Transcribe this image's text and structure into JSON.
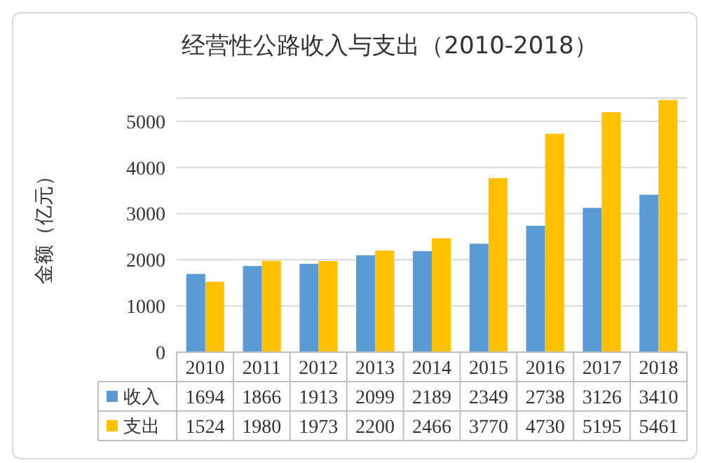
{
  "chart_data": {
    "type": "bar",
    "title": "经营性公路收入与支出（2010-2018）",
    "ylabel": "金额（亿元）",
    "categories": [
      "2010",
      "2011",
      "2012",
      "2013",
      "2014",
      "2015",
      "2016",
      "2017",
      "2018"
    ],
    "series": [
      {
        "name": "收入",
        "color": "#5b9bd5",
        "values": [
          1694,
          1866,
          1913,
          2099,
          2189,
          2349,
          2738,
          3126,
          3410
        ]
      },
      {
        "name": "支出",
        "color": "#ffc000",
        "values": [
          1524,
          1980,
          1973,
          2200,
          2466,
          3770,
          4730,
          5195,
          5461
        ]
      }
    ],
    "ylim": [
      0,
      5500
    ],
    "yticks": [
      0,
      1000,
      2000,
      3000,
      4000,
      5000
    ],
    "grid": "y",
    "legend": "bottom",
    "data_labels": true
  }
}
